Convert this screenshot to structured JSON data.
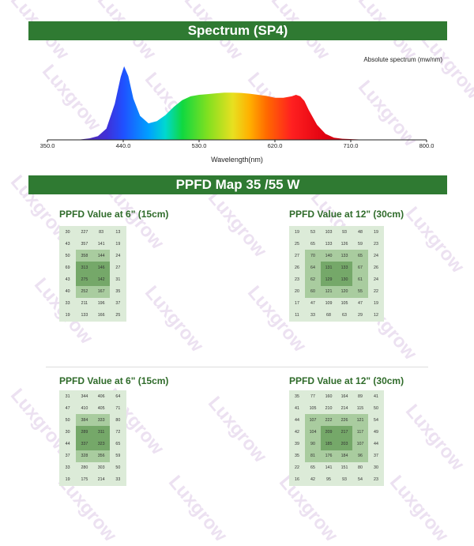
{
  "spectrum": {
    "title": "Spectrum (SP4)",
    "unit_label": "Absolute spectrum (mw/nm)",
    "xlabel": "Wavelength(nm)",
    "ticks": [
      "350.0",
      "440.0",
      "530.0",
      "620.0",
      "710.0",
      "800.0"
    ]
  },
  "chart_data": {
    "type": "area",
    "title": "Spectrum (SP4)",
    "xlabel": "Wavelength(nm)",
    "ylabel": "Absolute spectrum (mw/nm)",
    "xlim": [
      350,
      800
    ],
    "x": [
      385,
      400,
      410,
      420,
      430,
      437,
      441,
      446,
      452,
      460,
      470,
      480,
      490,
      500,
      510,
      520,
      530,
      540,
      550,
      560,
      570,
      580,
      590,
      600,
      610,
      620,
      630,
      640,
      645,
      650,
      655,
      660,
      670,
      680,
      690,
      700,
      720,
      740,
      760
    ],
    "y": [
      0,
      0.02,
      0.05,
      0.15,
      0.48,
      0.84,
      0.98,
      0.85,
      0.55,
      0.32,
      0.22,
      0.25,
      0.33,
      0.44,
      0.53,
      0.58,
      0.6,
      0.61,
      0.62,
      0.63,
      0.63,
      0.625,
      0.615,
      0.6,
      0.585,
      0.56,
      0.56,
      0.58,
      0.6,
      0.58,
      0.52,
      0.4,
      0.2,
      0.08,
      0.03,
      0.015,
      0.005,
      0.002,
      0
    ]
  },
  "ppfd_map": {
    "title": "PPFD Map 35 /55 W",
    "panels": [
      {
        "title": "PPFD Value at 6\" (15cm)",
        "rows": [
          [
            "30",
            "227",
            "83",
            "13"
          ],
          [
            "43",
            "357",
            "141",
            "19"
          ],
          [
            "50",
            "358",
            "144",
            "24"
          ],
          [
            "69",
            "313",
            "146",
            "27"
          ],
          [
            "43",
            "275",
            "142",
            "31"
          ],
          [
            "40",
            "252",
            "167",
            "35"
          ],
          [
            "33",
            "211",
            "196",
            "37"
          ],
          [
            "19",
            "133",
            "166",
            "25"
          ]
        ]
      },
      {
        "title": "PPFD Value at 12\" (30cm)",
        "rows": [
          [
            "19",
            "53",
            "103",
            "93",
            "48",
            "19"
          ],
          [
            "25",
            "65",
            "133",
            "126",
            "59",
            "23"
          ],
          [
            "27",
            "70",
            "140",
            "133",
            "65",
            "24"
          ],
          [
            "26",
            "64",
            "131",
            "133",
            "67",
            "26"
          ],
          [
            "23",
            "62",
            "129",
            "130",
            "61",
            "24"
          ],
          [
            "20",
            "60",
            "121",
            "120",
            "55",
            "22"
          ],
          [
            "17",
            "47",
            "109",
            "105",
            "47",
            "19"
          ],
          [
            "11",
            "33",
            "68",
            "63",
            "29",
            "12"
          ]
        ]
      },
      {
        "title": "PPFD Value at 6\" (15cm)",
        "rows": [
          [
            "31",
            "344",
            "406",
            "64"
          ],
          [
            "47",
            "410",
            "405",
            "71"
          ],
          [
            "50",
            "384",
            "333",
            "80"
          ],
          [
            "30",
            "289",
            "311",
            "72"
          ],
          [
            "44",
            "337",
            "323",
            "65"
          ],
          [
            "37",
            "328",
            "356",
            "59"
          ],
          [
            "33",
            "280",
            "303",
            "50"
          ],
          [
            "19",
            "175",
            "214",
            "33"
          ]
        ]
      },
      {
        "title": "PPFD Value at 12\" (30cm)",
        "rows": [
          [
            "35",
            "77",
            "160",
            "164",
            "89",
            "41"
          ],
          [
            "41",
            "105",
            "210",
            "214",
            "115",
            "50"
          ],
          [
            "44",
            "107",
            "222",
            "226",
            "121",
            "54"
          ],
          [
            "42",
            "104",
            "209",
            "217",
            "117",
            "49"
          ],
          [
            "39",
            "90",
            "185",
            "203",
            "107",
            "44"
          ],
          [
            "35",
            "81",
            "176",
            "184",
            "96",
            "37"
          ],
          [
            "22",
            "65",
            "141",
            "151",
            "80",
            "30"
          ],
          [
            "16",
            "42",
            "95",
            "93",
            "54",
            "23"
          ]
        ]
      }
    ]
  },
  "watermark": "Luxgrow",
  "colors": {
    "banner": "#2f7a32",
    "title": "#2f6b2a",
    "shade_light": "#dcebd8",
    "shade_mid": "#a9cc9f",
    "shade_dark": "#75a869"
  }
}
